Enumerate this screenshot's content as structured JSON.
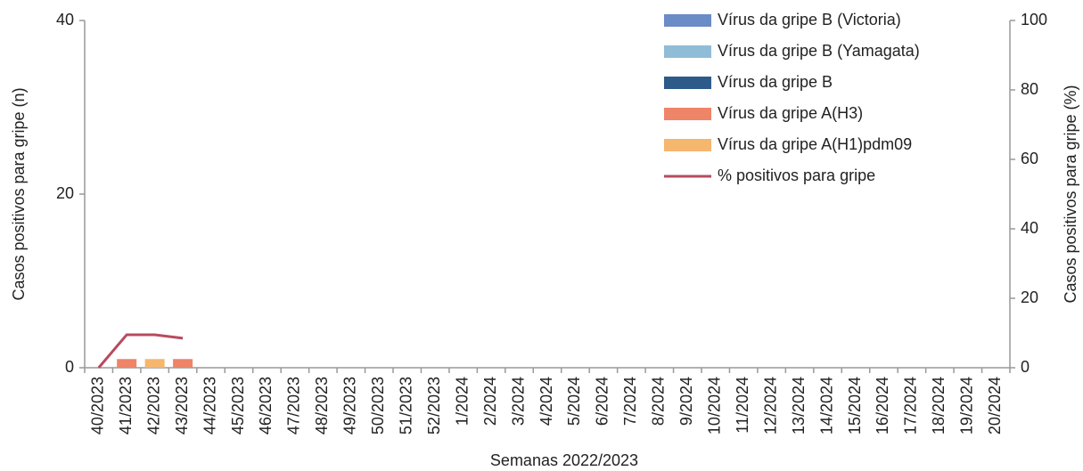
{
  "chart_data": {
    "type": "bar",
    "categories": [
      "40/2023",
      "41/2023",
      "42/2023",
      "43/2023",
      "44/2023",
      "45/2023",
      "46/2023",
      "47/2023",
      "48/2023",
      "49/2023",
      "50/2023",
      "51/2023",
      "52/2023",
      "1/2024",
      "2/2024",
      "3/2024",
      "4/2024",
      "5/2024",
      "6/2024",
      "7/2024",
      "8/2024",
      "9/2024",
      "10/2024",
      "11/2024",
      "12/2024",
      "13/2024",
      "14/2024",
      "15/2024",
      "16/2024",
      "17/2024",
      "18/2024",
      "19/2024",
      "20/2024"
    ],
    "xlabel": "Semanas 2022/2023",
    "ylabel": "Casos positivos para gripe (n)",
    "y2label": "Casos positivos para gripe (%)",
    "ylim": [
      0,
      40
    ],
    "yticks": [
      0,
      20,
      40
    ],
    "y2lim": [
      0,
      100
    ],
    "y2ticks": [
      0,
      20,
      40,
      60,
      80,
      100
    ],
    "stacked": true,
    "series": [
      {
        "name": "Vírus da gripe B (Victoria)",
        "color": "#6a8cc7",
        "values": [
          0,
          0,
          0,
          0,
          null,
          null,
          null,
          null,
          null,
          null,
          null,
          null,
          null,
          null,
          null,
          null,
          null,
          null,
          null,
          null,
          null,
          null,
          null,
          null,
          null,
          null,
          null,
          null,
          null,
          null,
          null,
          null,
          null
        ]
      },
      {
        "name": "Vírus da gripe B (Yamagata)",
        "color": "#8fbcd6",
        "values": [
          0,
          0,
          0,
          0,
          null,
          null,
          null,
          null,
          null,
          null,
          null,
          null,
          null,
          null,
          null,
          null,
          null,
          null,
          null,
          null,
          null,
          null,
          null,
          null,
          null,
          null,
          null,
          null,
          null,
          null,
          null,
          null,
          null
        ]
      },
      {
        "name": "Vírus da gripe B",
        "color": "#2e5a8a",
        "values": [
          0,
          0,
          0,
          0,
          null,
          null,
          null,
          null,
          null,
          null,
          null,
          null,
          null,
          null,
          null,
          null,
          null,
          null,
          null,
          null,
          null,
          null,
          null,
          null,
          null,
          null,
          null,
          null,
          null,
          null,
          null,
          null,
          null
        ]
      },
      {
        "name": "Vírus da gripe A(H3)",
        "color": "#ee8468",
        "values": [
          0,
          1,
          0,
          1,
          null,
          null,
          null,
          null,
          null,
          null,
          null,
          null,
          null,
          null,
          null,
          null,
          null,
          null,
          null,
          null,
          null,
          null,
          null,
          null,
          null,
          null,
          null,
          null,
          null,
          null,
          null,
          null,
          null
        ]
      },
      {
        "name": "Vírus da gripe A(H1)pdm09",
        "color": "#f5b66e",
        "values": [
          0,
          0,
          1,
          0,
          null,
          null,
          null,
          null,
          null,
          null,
          null,
          null,
          null,
          null,
          null,
          null,
          null,
          null,
          null,
          null,
          null,
          null,
          null,
          null,
          null,
          null,
          null,
          null,
          null,
          null,
          null,
          null,
          null
        ]
      },
      {
        "name": "% positivos para gripe",
        "color": "#b94a5f",
        "type": "line",
        "axis": "y2",
        "values": [
          0,
          9.5,
          9.5,
          8.5,
          null,
          null,
          null,
          null,
          null,
          null,
          null,
          null,
          null,
          null,
          null,
          null,
          null,
          null,
          null,
          null,
          null,
          null,
          null,
          null,
          null,
          null,
          null,
          null,
          null,
          null,
          null,
          null,
          null
        ]
      }
    ]
  }
}
